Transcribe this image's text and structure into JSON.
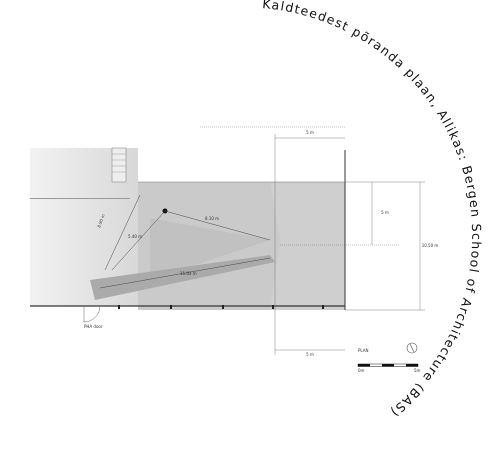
{
  "caption": "Kaldteedest põranda plaan, Allikas: Bergen School of Architecture (BAS)",
  "labels": {
    "top_width": "5 m",
    "right_offset": "5 m",
    "total_depth": "10.50 m",
    "bottom_width": "5 m",
    "segment_a": "8.10 m",
    "segment_b": "5.40 m",
    "segment_c": "15.83 m",
    "segment_d": "8.90 m",
    "door": "PHA door",
    "plan": "PLAN",
    "scale_start": "0m",
    "scale_end": "5m"
  }
}
